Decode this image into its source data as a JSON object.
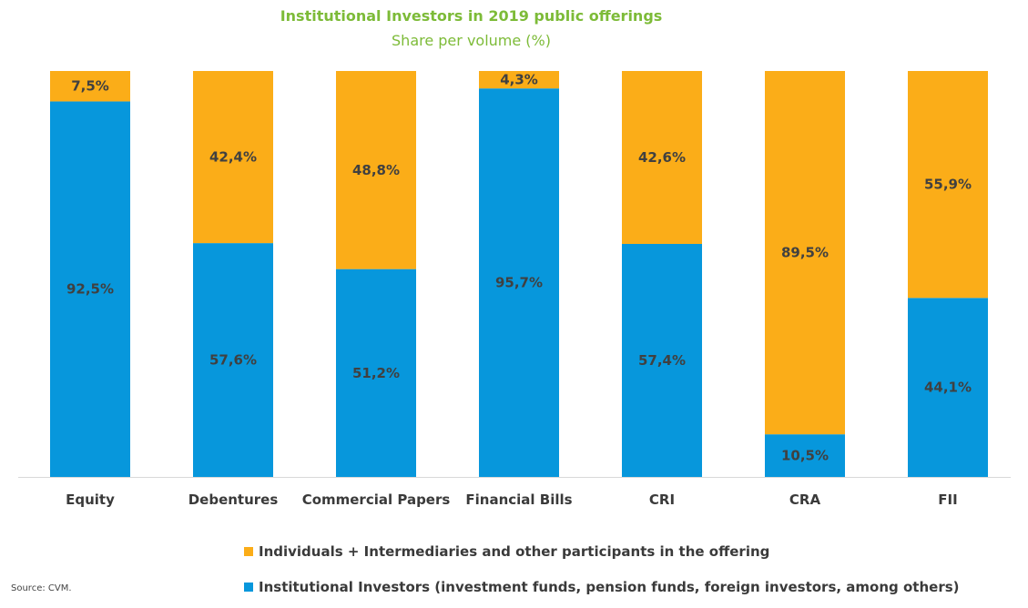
{
  "chart_data": {
    "type": "bar",
    "stacked": true,
    "title": "Institutional  Investors in 2019 public offerings",
    "subtitle": "Share per volume (%)",
    "xlabel": "",
    "ylabel": "",
    "ylim": [
      0,
      100
    ],
    "grid": false,
    "legend_position": "bottom",
    "categories": [
      "Equity",
      "Debentures",
      "Commercial Papers",
      "Financial Bills",
      "CRI",
      "CRA",
      "FII"
    ],
    "series": [
      {
        "name": "Institutional Investors (investment funds, pension funds, foreign investors, among others)",
        "color": "#0797dc",
        "values": [
          92.5,
          57.6,
          51.2,
          95.7,
          57.4,
          10.5,
          44.1
        ],
        "labels": [
          "92,5%",
          "57,6%",
          "51,2%",
          "95,7%",
          "57,4%",
          "10,5%",
          "44,1%"
        ]
      },
      {
        "name": "Individuals + Intermediaries and other participants in the offering",
        "color": "#fbad18",
        "values": [
          7.5,
          42.4,
          48.8,
          4.3,
          42.6,
          89.5,
          55.9
        ],
        "labels": [
          "7,5%",
          "42,4%",
          "48,8%",
          "4,3%",
          "42,6%",
          "89,5%",
          "55,9%"
        ]
      }
    ],
    "legend_order": [
      1,
      0
    ]
  },
  "source": "Source: CVM.",
  "colors": {
    "title": "#7dbb38",
    "institutional": "#0797dc",
    "individuals": "#fbad18",
    "label_text": "#404040",
    "axis": "#d9d9d9"
  }
}
